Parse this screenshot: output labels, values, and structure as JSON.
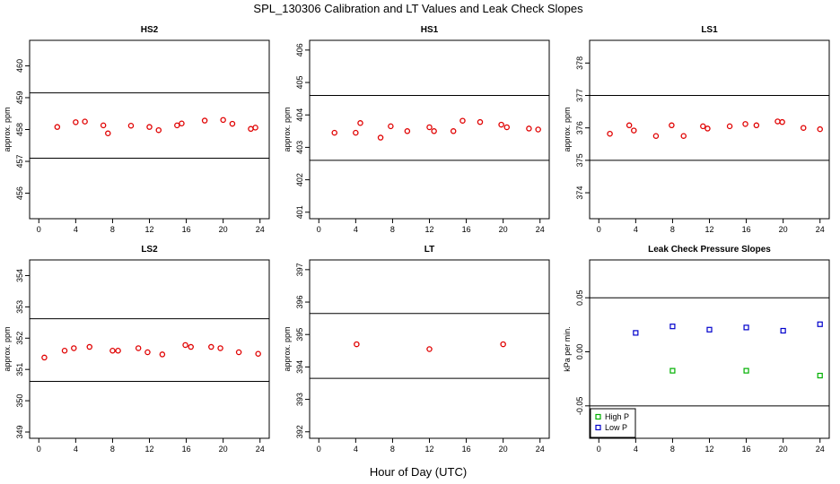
{
  "title": "SPL_130306  Calibration and LT Values and Leak Check Slopes",
  "xlabel": "Hour of Day (UTC)",
  "chart_data": [
    {
      "type": "scatter",
      "title": "HS2",
      "ylabel": "approx. ppm",
      "xlim": [
        -1,
        25
      ],
      "ylim": [
        455.2,
        460.8
      ],
      "xticks": [
        0,
        4,
        8,
        12,
        16,
        20,
        24
      ],
      "yticks": [
        456,
        457,
        458,
        459,
        460
      ],
      "hlines": [
        459.15,
        457.1
      ],
      "series": [
        {
          "color": "#e00000",
          "marker": "circle",
          "x": [
            2.0,
            4.0,
            5.0,
            7.0,
            7.5,
            10.0,
            12.0,
            13.0,
            15.0,
            15.5,
            18.0,
            20.0,
            21.0,
            23.0,
            23.5
          ],
          "y": [
            458.08,
            458.23,
            458.25,
            458.13,
            457.88,
            458.12,
            458.08,
            457.98,
            458.13,
            458.19,
            458.28,
            458.3,
            458.18,
            458.02,
            458.06
          ]
        }
      ]
    },
    {
      "type": "scatter",
      "title": "HS1",
      "ylabel": "approx. ppm",
      "xlim": [
        -1,
        25
      ],
      "ylim": [
        400.8,
        406.3
      ],
      "xticks": [
        0,
        4,
        8,
        12,
        16,
        20,
        24
      ],
      "yticks": [
        401,
        402,
        403,
        404,
        405,
        406
      ],
      "hlines": [
        404.6,
        402.6
      ],
      "series": [
        {
          "color": "#e00000",
          "marker": "circle",
          "x": [
            1.7,
            4.0,
            4.5,
            6.7,
            7.8,
            9.6,
            12.0,
            12.5,
            14.6,
            15.6,
            17.5,
            19.8,
            20.4,
            22.8,
            23.8
          ],
          "y": [
            403.45,
            403.45,
            403.75,
            403.3,
            403.65,
            403.5,
            403.62,
            403.5,
            403.5,
            403.82,
            403.78,
            403.7,
            403.62,
            403.58,
            403.55
          ]
        }
      ]
    },
    {
      "type": "scatter",
      "title": "LS1",
      "ylabel": "approx. ppm",
      "xlim": [
        -1,
        25
      ],
      "ylim": [
        373.2,
        378.7
      ],
      "xticks": [
        0,
        4,
        8,
        12,
        16,
        20,
        24
      ],
      "yticks": [
        374,
        375,
        376,
        377,
        378
      ],
      "hlines": [
        377.0,
        375.0
      ],
      "series": [
        {
          "color": "#e00000",
          "marker": "circle",
          "x": [
            1.2,
            3.3,
            3.8,
            6.2,
            7.9,
            9.2,
            11.3,
            11.8,
            14.2,
            15.9,
            17.1,
            19.4,
            19.9,
            22.2,
            24.0
          ],
          "y": [
            375.82,
            376.08,
            375.92,
            375.75,
            376.08,
            375.75,
            376.05,
            375.98,
            376.05,
            376.12,
            376.08,
            376.2,
            376.18,
            376.0,
            375.96
          ]
        }
      ]
    },
    {
      "type": "scatter",
      "title": "LS2",
      "ylabel": "approx. ppm",
      "xlim": [
        -1,
        25
      ],
      "ylim": [
        348.8,
        354.5
      ],
      "xticks": [
        0,
        4,
        8,
        12,
        16,
        20,
        24
      ],
      "yticks": [
        349,
        350,
        351,
        352,
        353,
        354
      ],
      "hlines": [
        352.62,
        350.62
      ],
      "series": [
        {
          "color": "#e00000",
          "marker": "circle",
          "x": [
            0.6,
            2.8,
            3.8,
            5.5,
            8.0,
            8.6,
            10.8,
            11.8,
            13.4,
            15.9,
            16.5,
            18.7,
            19.7,
            21.7,
            23.8
          ],
          "y": [
            351.38,
            351.6,
            351.68,
            351.72,
            351.6,
            351.6,
            351.68,
            351.55,
            351.48,
            351.78,
            351.72,
            351.72,
            351.68,
            351.55,
            351.5
          ]
        }
      ]
    },
    {
      "type": "scatter",
      "title": "LT",
      "ylabel": "approx. ppm",
      "xlim": [
        -1,
        25
      ],
      "ylim": [
        391.8,
        397.3
      ],
      "xticks": [
        0,
        4,
        8,
        12,
        16,
        20,
        24
      ],
      "yticks": [
        392,
        393,
        394,
        395,
        396,
        397
      ],
      "hlines": [
        395.65,
        393.65
      ],
      "series": [
        {
          "color": "#e00000",
          "marker": "circle",
          "x": [
            4.1,
            12.0,
            20.0
          ],
          "y": [
            394.7,
            394.55,
            394.7
          ]
        }
      ]
    },
    {
      "type": "scatter",
      "title": "Leak Check Pressure Slopes",
      "ylabel": "kPa per min.",
      "xlim": [
        -1,
        25
      ],
      "ylim": [
        -0.08,
        0.085
      ],
      "xticks": [
        0,
        4,
        8,
        12,
        16,
        20,
        24
      ],
      "yticks": [
        -0.05,
        0.0,
        0.05
      ],
      "ytick_labels": [
        "-0.05",
        "0.00",
        "0.05"
      ],
      "hlines": [
        0.05,
        -0.05
      ],
      "legend": {
        "position": "bottom-left"
      },
      "series": [
        {
          "name": "High P",
          "color": "#00b000",
          "marker": "square",
          "x": [
            8.0,
            16.0,
            24.0
          ],
          "y": [
            -0.0175,
            -0.0175,
            -0.022
          ]
        },
        {
          "name": "Low P",
          "color": "#0000cc",
          "marker": "square",
          "x": [
            4.0,
            8.0,
            12.0,
            16.0,
            20.0,
            24.0
          ],
          "y": [
            0.0175,
            0.0235,
            0.0205,
            0.0225,
            0.0195,
            0.0255
          ]
        }
      ]
    }
  ]
}
